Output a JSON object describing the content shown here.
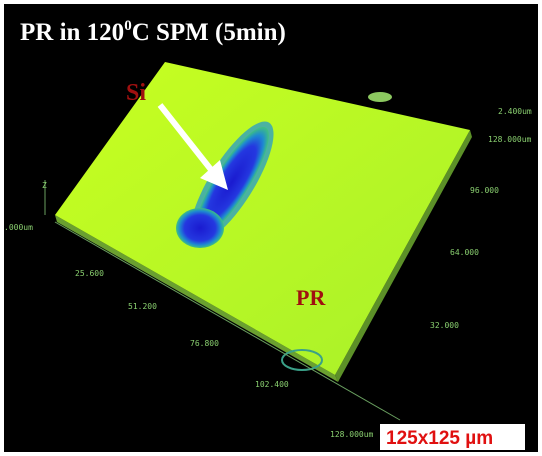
{
  "header": {
    "title_start": "PR in 120",
    "title_sup": "0",
    "title_end": "C SPM (5min)"
  },
  "labels": {
    "si": "Si",
    "pr": "PR",
    "scale": "125x125 µm"
  },
  "axis": {
    "z_label": "Z",
    "z_value": ".000um",
    "right_ticks": [
      "2.400um",
      "128.000um",
      "96.000",
      "64.000",
      "32.000"
    ],
    "front_ticks": [
      "25.600",
      "51.200",
      "76.800",
      "102.400",
      "128.000um"
    ]
  }
}
